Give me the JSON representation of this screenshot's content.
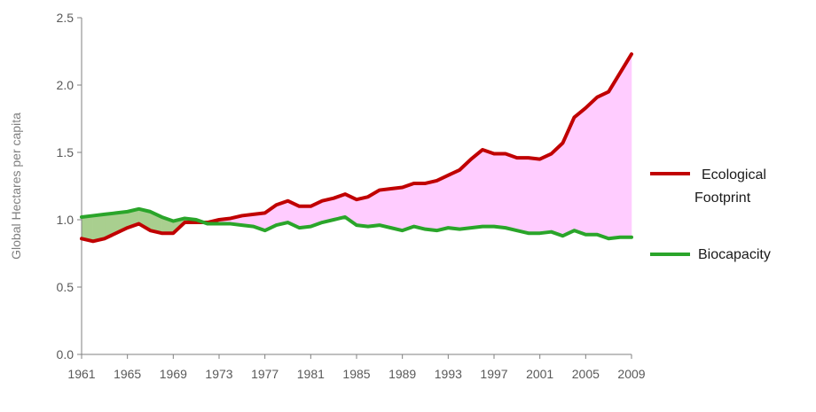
{
  "chart_data": {
    "type": "line",
    "ylabel": "Global Hectares per capita",
    "xlabel": "",
    "title": "",
    "ylim": [
      0,
      2.5
    ],
    "xlim": [
      1961,
      2009
    ],
    "y_ticks": [
      "0.0",
      "0.5",
      "1.0",
      "1.5",
      "2.0",
      "2.5"
    ],
    "x_ticks": [
      "1961",
      "1965",
      "1969",
      "1973",
      "1977",
      "1981",
      "1985",
      "1989",
      "1993",
      "1997",
      "2001",
      "2005",
      "2009"
    ],
    "grid": false,
    "legend_position": "right",
    "x": [
      1961,
      1962,
      1963,
      1964,
      1965,
      1966,
      1967,
      1968,
      1969,
      1970,
      1971,
      1972,
      1973,
      1974,
      1975,
      1976,
      1977,
      1978,
      1979,
      1980,
      1981,
      1982,
      1983,
      1984,
      1985,
      1986,
      1987,
      1988,
      1989,
      1990,
      1991,
      1992,
      1993,
      1994,
      1995,
      1996,
      1997,
      1998,
      1999,
      2000,
      2001,
      2002,
      2003,
      2004,
      2005,
      2006,
      2007,
      2008,
      2009
    ],
    "series": [
      {
        "name": "Ecological Footprint",
        "color": "#c00000",
        "values": [
          0.86,
          0.84,
          0.86,
          0.9,
          0.94,
          0.97,
          0.92,
          0.9,
          0.9,
          0.98,
          0.98,
          0.98,
          1.0,
          1.01,
          1.03,
          1.04,
          1.05,
          1.11,
          1.14,
          1.1,
          1.1,
          1.14,
          1.16,
          1.19,
          1.15,
          1.17,
          1.22,
          1.23,
          1.24,
          1.27,
          1.27,
          1.29,
          1.33,
          1.37,
          1.45,
          1.52,
          1.49,
          1.49,
          1.46,
          1.46,
          1.45,
          1.49,
          1.57,
          1.76,
          1.83,
          1.91,
          1.95,
          2.09,
          2.23
        ]
      },
      {
        "name": "Biocapacity",
        "color": "#2aa52a",
        "values": [
          1.02,
          1.03,
          1.04,
          1.05,
          1.06,
          1.08,
          1.06,
          1.02,
          0.99,
          1.01,
          1.0,
          0.97,
          0.97,
          0.97,
          0.96,
          0.95,
          0.92,
          0.96,
          0.98,
          0.94,
          0.95,
          0.98,
          1.0,
          1.02,
          0.96,
          0.95,
          0.96,
          0.94,
          0.92,
          0.95,
          0.93,
          0.92,
          0.94,
          0.93,
          0.94,
          0.95,
          0.95,
          0.94,
          0.92,
          0.9,
          0.9,
          0.91,
          0.88,
          0.92,
          0.89,
          0.89,
          0.86,
          0.87,
          0.87
        ]
      }
    ],
    "fill_colors": {
      "footprint_above": "#ffccff",
      "biocapacity_above": "#a9cf8f"
    }
  }
}
